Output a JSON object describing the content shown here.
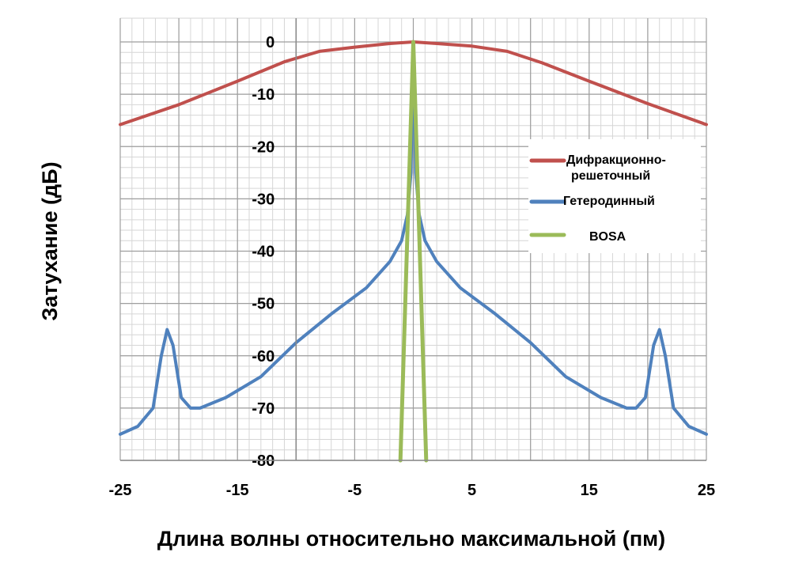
{
  "chart_data": {
    "type": "line",
    "title": "",
    "xlabel": "Длина волны относительно максимальной (пм)",
    "ylabel": "Затухание (дБ)",
    "xlim": [
      -25,
      25
    ],
    "ylim": [
      -80,
      0
    ],
    "x_ticks": [
      -25,
      -15,
      -5,
      5,
      15,
      25
    ],
    "y_ticks": [
      0,
      -10,
      -20,
      -30,
      -40,
      -50,
      -60,
      -70,
      -80
    ],
    "grid": true,
    "legend_position": "right",
    "series": [
      {
        "name": "Дифракционно-решеточный",
        "legend_lines": [
          "Дифракционно-",
          "решеточный"
        ],
        "color": "#c0504d",
        "x": [
          -25,
          -20,
          -15,
          -11,
          -8,
          -5,
          -2,
          0,
          2,
          5,
          8,
          11,
          15,
          20,
          25
        ],
        "y": [
          -15.8,
          -12,
          -7.5,
          -3.8,
          -1.8,
          -1,
          -0.3,
          0,
          -0.3,
          -0.8,
          -1.8,
          -4,
          -7.5,
          -11.8,
          -15.8
        ]
      },
      {
        "name": "Гетеродинный",
        "legend_lines": [
          "Гетеродинный"
        ],
        "color": "#4f81bd",
        "x": [
          -25,
          -23.5,
          -22.2,
          -21.5,
          -21,
          -20.5,
          -19.8,
          -19,
          -18.2,
          -16,
          -13,
          -10,
          -7,
          -4,
          -2,
          -1,
          -0.5,
          -0.2,
          0,
          0.2,
          0.5,
          1,
          2,
          4,
          7,
          10,
          13,
          16,
          18.2,
          19,
          19.8,
          20.5,
          21,
          21.5,
          22.2,
          23.5,
          25
        ],
        "y": [
          -75,
          -73.5,
          -70,
          -60,
          -55,
          -58,
          -68,
          -70,
          -70,
          -68,
          -64,
          -57.5,
          -52,
          -47,
          -42,
          -38,
          -33,
          -25,
          0,
          -25,
          -33,
          -38,
          -42,
          -47,
          -52,
          -57.5,
          -64,
          -68,
          -70,
          -70,
          -68,
          -58,
          -55,
          -60,
          -70,
          -73.5,
          -75
        ]
      },
      {
        "name": "BOSA",
        "legend_lines": [
          "BOSA"
        ],
        "color": "#9bbb59",
        "x": [
          -1.1,
          0,
          1.1
        ],
        "y": [
          -80,
          0,
          -80
        ]
      }
    ]
  }
}
